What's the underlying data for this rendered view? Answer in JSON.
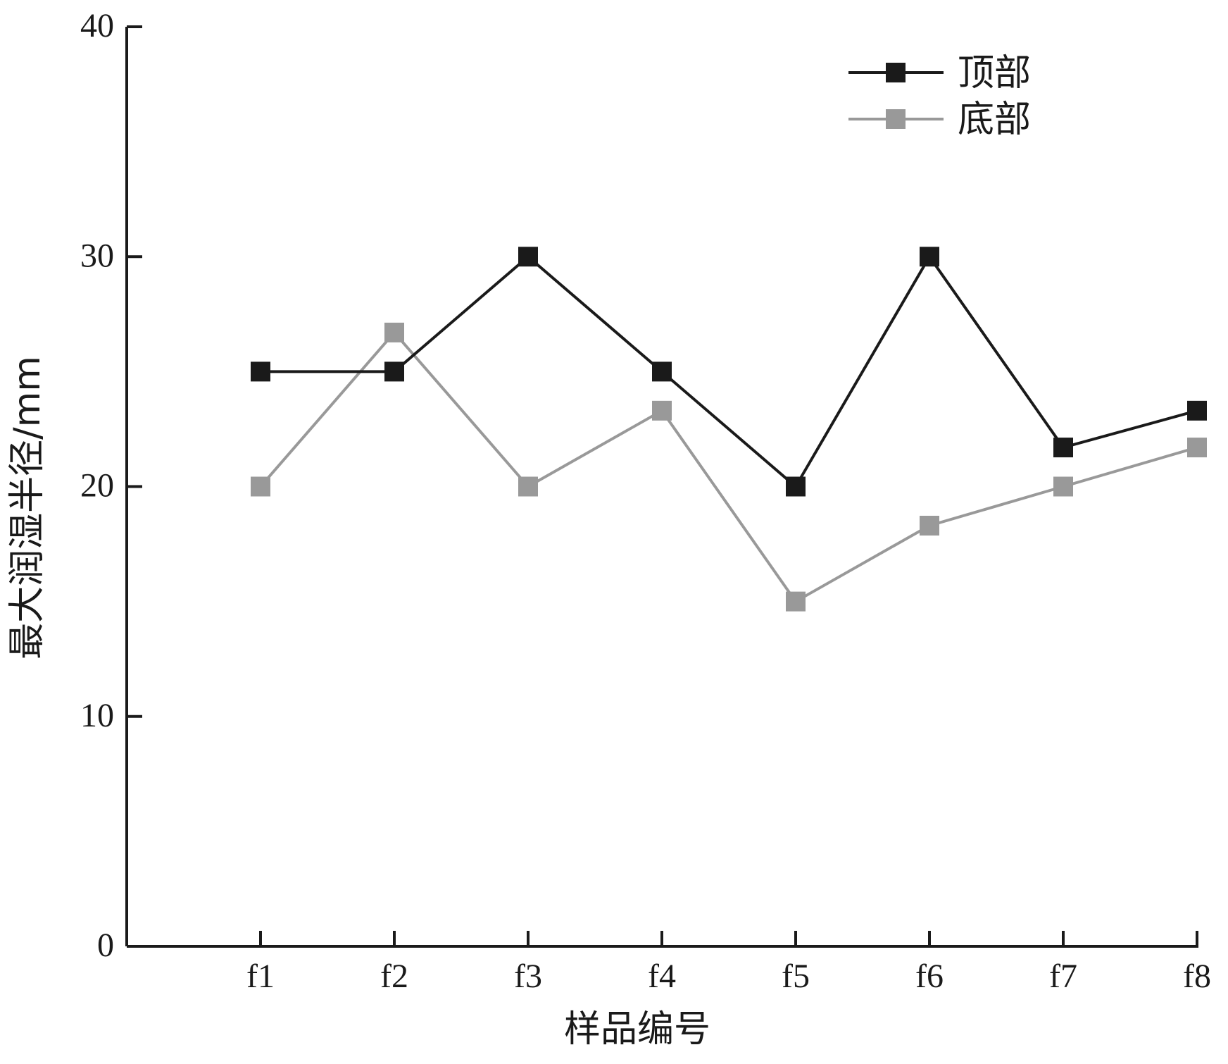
{
  "chart_data": {
    "type": "line",
    "xlabel": "样品编号",
    "ylabel": "最大润湿半径/mm",
    "ylim": [
      0,
      40
    ],
    "yticks": [
      0,
      10,
      20,
      30,
      40
    ],
    "categories": [
      "f1",
      "f2",
      "f3",
      "f4",
      "f5",
      "f6",
      "f7",
      "f8"
    ],
    "legend_position": "top-right",
    "grid": false,
    "series": [
      {
        "name": "顶部",
        "color": "#1a1a1a",
        "marker": "square",
        "values": [
          25,
          25,
          30,
          25,
          20,
          30,
          21.7,
          23.3
        ]
      },
      {
        "name": "底部",
        "color": "#999999",
        "marker": "square",
        "values": [
          20,
          26.7,
          20,
          23.3,
          15,
          18.3,
          20,
          21.7
        ]
      }
    ]
  }
}
